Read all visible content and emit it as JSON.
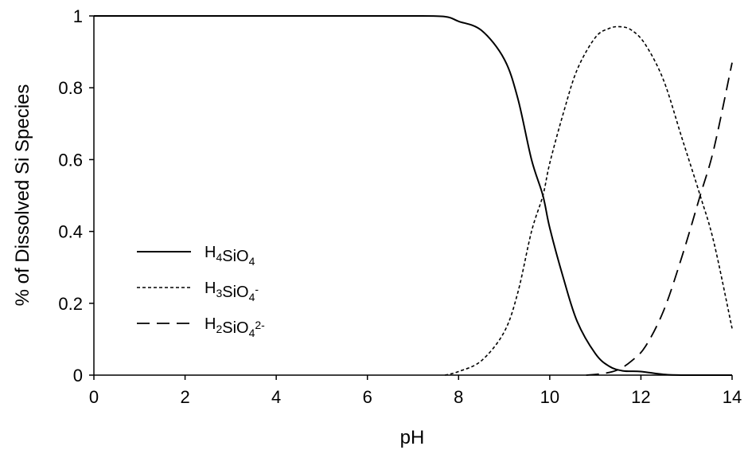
{
  "chart_data": {
    "type": "line",
    "xlabel": "pH",
    "ylabel": "% of Dissolved Si Species",
    "xlim": [
      0,
      14
    ],
    "ylim": [
      0,
      1
    ],
    "x_ticks": [
      "0",
      "2",
      "4",
      "6",
      "8",
      "10",
      "12",
      "14"
    ],
    "y_ticks": [
      "0",
      "0.2",
      "0.4",
      "0.6",
      "0.8",
      "1"
    ],
    "grid": false,
    "legend_position": "bottom-left",
    "series": [
      {
        "name": "H4SiO4",
        "legend_parts": [
          [
            "H",
            ""
          ],
          [
            "4",
            "sub"
          ],
          [
            "SiO",
            ""
          ],
          [
            "4",
            "sub"
          ]
        ],
        "line_style": "solid",
        "x": [
          0,
          2,
          4,
          6,
          7,
          7.7,
          8,
          8.5,
          9,
          9.3,
          9.6,
          9.85,
          10,
          10.3,
          10.6,
          11,
          11.3,
          11.6,
          12,
          12.5,
          13,
          14
        ],
        "y": [
          1,
          1,
          1,
          1,
          1,
          0.998,
          0.985,
          0.96,
          0.88,
          0.77,
          0.6,
          0.5,
          0.41,
          0.27,
          0.15,
          0.06,
          0.025,
          0.012,
          0.01,
          0.002,
          0,
          0
        ]
      },
      {
        "name": "H3SiO4-",
        "legend_parts": [
          [
            "H",
            ""
          ],
          [
            "3",
            "sub"
          ],
          [
            "SiO",
            ""
          ],
          [
            "4",
            "sub"
          ],
          [
            "-",
            "sup"
          ]
        ],
        "line_style": "dotted",
        "x": [
          7.7,
          8,
          8.5,
          9,
          9.3,
          9.6,
          9.85,
          10,
          10.3,
          10.6,
          11,
          11.3,
          11.55,
          11.8,
          12.1,
          12.5,
          12.9,
          13.3,
          13.6,
          14
        ],
        "y": [
          0,
          0.01,
          0.04,
          0.12,
          0.23,
          0.4,
          0.5,
          0.59,
          0.73,
          0.85,
          0.94,
          0.965,
          0.97,
          0.96,
          0.92,
          0.82,
          0.66,
          0.5,
          0.37,
          0.13
        ]
      },
      {
        "name": "H2SiO4 2-",
        "legend_parts": [
          [
            "H",
            ""
          ],
          [
            "2",
            "sub"
          ],
          [
            "SiO",
            ""
          ],
          [
            "4",
            "sub"
          ],
          [
            "2-",
            "sup"
          ]
        ],
        "line_style": "dashed",
        "x": [
          10.8,
          11.2,
          11.5,
          11.8,
          12.1,
          12.5,
          12.9,
          13.3,
          13.6,
          14
        ],
        "y": [
          0,
          0.005,
          0.015,
          0.04,
          0.08,
          0.18,
          0.33,
          0.5,
          0.63,
          0.87
        ]
      }
    ]
  }
}
